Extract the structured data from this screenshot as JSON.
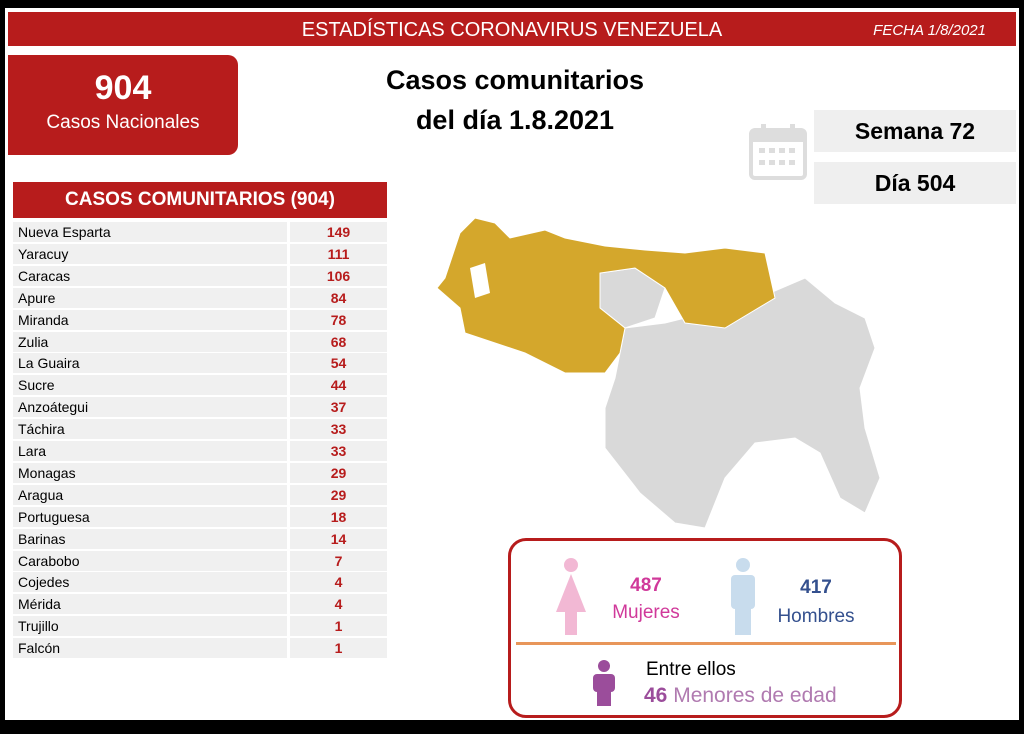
{
  "header": {
    "title": "ESTADÍSTICAS CORONAVIRUS VENEZUELA",
    "date": "FECHA 1/8/2021"
  },
  "national": {
    "total": 904,
    "label": "Casos Nacionales"
  },
  "headline": {
    "line1": "Casos comunitarios",
    "line2": "del día 1.8.2021"
  },
  "week": "Semana 72",
  "day": "Día 504",
  "table": {
    "title": "CASOS COMUNITARIOS (904)",
    "rows": [
      [
        "Nueva Esparta",
        149
      ],
      [
        "Yaracuy",
        111
      ],
      [
        "Caracas",
        106
      ],
      [
        "Apure",
        84
      ],
      [
        "Miranda",
        78
      ],
      [
        "Zulia",
        68
      ],
      [
        "La Guaira",
        54
      ],
      [
        "Sucre",
        44
      ],
      [
        "Anzoátegui",
        37
      ],
      [
        "Táchira",
        33
      ],
      [
        "Lara",
        33
      ],
      [
        "Monagas",
        29
      ],
      [
        "Aragua",
        29
      ],
      [
        "Portuguesa",
        18
      ],
      [
        "Barinas",
        14
      ],
      [
        "Carabobo",
        7
      ],
      [
        "Cojedes",
        4
      ],
      [
        "Mérida",
        4
      ],
      [
        "Trujillo",
        1
      ],
      [
        "Falcón",
        1
      ]
    ]
  },
  "gender": {
    "women": {
      "value": 487,
      "label": "Mujeres"
    },
    "men": {
      "value": 417,
      "label": "Hombres"
    },
    "minors_intro": "Entre ellos",
    "minors": {
      "value": 46,
      "label": "Menores de edad"
    }
  }
}
